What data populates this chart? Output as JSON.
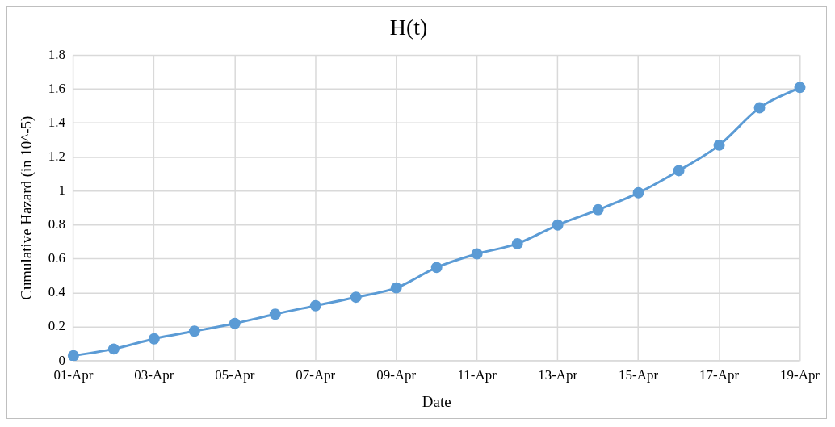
{
  "chart_data": {
    "type": "line",
    "title": "H(t)",
    "xlabel": "Date",
    "ylabel": "Cumulative Hazard (in 10^-5)",
    "categories": [
      "01-Apr",
      null,
      "03-Apr",
      null,
      "05-Apr",
      null,
      "07-Apr",
      null,
      "09-Apr",
      null,
      "11-Apr",
      null,
      "13-Apr",
      null,
      "15-Apr",
      null,
      "17-Apr",
      null,
      "19-Apr"
    ],
    "series": [
      {
        "color": "#5b9bd5",
        "values": [
          0.03,
          0.07,
          0.13,
          0.175,
          0.22,
          0.275,
          0.325,
          0.375,
          0.43,
          0.55,
          0.63,
          0.69,
          0.8,
          0.89,
          0.99,
          1.12,
          1.27,
          1.49,
          1.61
        ]
      }
    ],
    "ylim": [
      0,
      1.8
    ],
    "yticks": [
      0,
      0.2,
      0.4,
      0.6,
      0.8,
      1,
      1.2,
      1.4,
      1.6,
      1.8
    ],
    "grid": true,
    "marker": "circle",
    "line_style": "solid"
  }
}
